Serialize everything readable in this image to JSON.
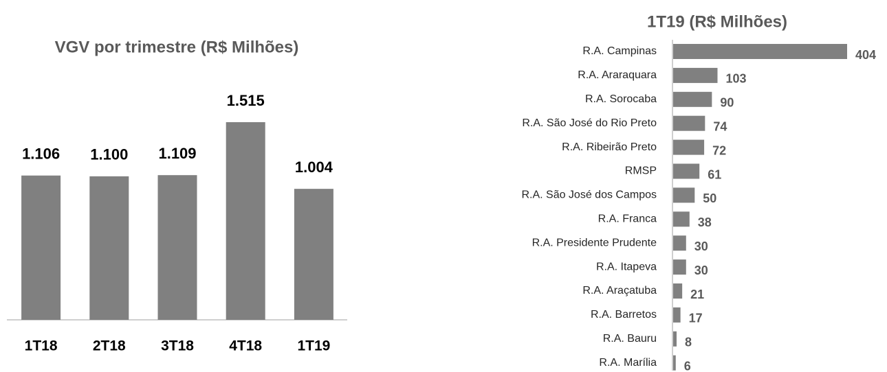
{
  "chart_data": [
    {
      "type": "bar",
      "title": "VGV por trimestre (R$ Milhões)",
      "categories": [
        "1T18",
        "2T18",
        "3T18",
        "4T18",
        "1T19"
      ],
      "values": [
        1106,
        1100,
        1109,
        1515,
        1004
      ],
      "value_labels": [
        "1.106",
        "1.100",
        "1.109",
        "1.515",
        "1.004"
      ],
      "color": "#808080"
    },
    {
      "type": "hbar",
      "title": "1T19 (R$ Milhões)",
      "categories": [
        "R.A. Campinas",
        "R.A. Araraquara",
        "R.A. Sorocaba",
        "R.A. São José do Rio Preto",
        "R.A. Ribeirão Preto",
        "RMSP",
        "R.A. São José dos Campos",
        "R.A. Franca",
        "R.A. Presidente Prudente",
        "R.A. Itapeva",
        "R.A. Araçatuba",
        "R.A. Barretos",
        "R.A. Bauru",
        "R.A. Marília"
      ],
      "values": [
        404,
        103,
        90,
        74,
        72,
        61,
        50,
        38,
        30,
        30,
        21,
        17,
        8,
        6
      ],
      "color": "#808080"
    }
  ]
}
